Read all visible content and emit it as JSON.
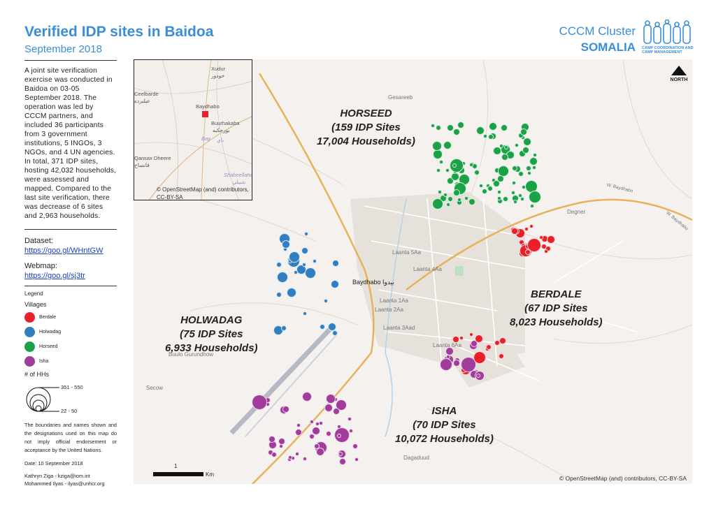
{
  "header": {
    "title": "Verified IDP sites in Baidoa",
    "subtitle": "September 2018",
    "org_line1": "CCCM Cluster",
    "org_line2": "SOMALIA",
    "org_logo_text": "CAMP COORDINATION AND CAMP MANAGEMENT"
  },
  "sidebar": {
    "intro": "A joint site verification exercise was conducted in Baidoa on 03-05 September 2018. The operation was led by CCCM partners, and included 36 participants from 3 government institutions, 5 INGOs, 3 NGOs, and 4 UN agencies. In total, 371 IDP sites, hosting 42,032 households, were assessed and mapped. Compared to the last site verification, there was decrease of 6 sites and 2,963 households.",
    "dataset_label": "Dataset:",
    "dataset_link": "https://goo.gl/WHntGW",
    "webmap_label": "Webmap:",
    "webmap_link": "https://goo.gl/sj3tr",
    "legend_title": "Legend",
    "villages_title": "Villages",
    "villages": [
      {
        "name": "Berdale",
        "color": "#e8202a"
      },
      {
        "name": "Holwadag",
        "color": "#2f7fc1"
      },
      {
        "name": "Horseed",
        "color": "#1ba146"
      },
      {
        "name": "Isha",
        "color": "#a23c9b"
      }
    ],
    "hh_title": "# of HHs",
    "hh_max": "351 - 550",
    "hh_min": "22 - 50",
    "disclaimer": "The boundaries and names shown and the designations used on this map do not imply official endorsement or acceptance by the United Nations.",
    "date": "Date: 10 September 2018",
    "contact1": "Kathryn Ziga - kziga@iom.int",
    "contact2": "Mohammed Ilyas - ilyas@unhcr.org"
  },
  "map": {
    "areas": [
      {
        "name": "HORSEED",
        "sites": "(159 IDP Sites",
        "households": "17,004 Households)"
      },
      {
        "name": "BERDALE",
        "sites": "(67 IDP Sites",
        "households": "8,023 Households)"
      },
      {
        "name": "HOLWADAG",
        "sites": "(75 IDP Sites",
        "households": "6,933 Households)"
      },
      {
        "name": "ISHA",
        "sites": "(70 IDP Sites",
        "households": "10,072 Households)"
      }
    ],
    "places": [
      "Gesareeb",
      "Laanta 5Aa",
      "Laanta 4Aa",
      "Baydhabo بيدوا",
      "Laanta 1Aa",
      "Laanta 2Aa",
      "Laanta 3Aad",
      "Laanta 6Aa",
      "Degner",
      "Buulo Gurundhow",
      "Secow",
      "Dagaduud",
      "W. Baydhabo",
      "W. Baydhabo"
    ],
    "north_label": "NORTH",
    "scale_zero": "0",
    "scale_one": "1",
    "scale_unit": "Km",
    "credit": "© OpenStreetMap (and) contributors, CC-BY-SA",
    "inset": {
      "places": [
        "Xudur",
        "حودور",
        "Ceelbarde",
        "عيلبرده",
        "Baydhabo",
        "Buurhakaba",
        "بورحكبه",
        "Bay",
        "باي",
        "Qansax Dheere",
        "قانساح",
        "Shabeellaha",
        "شبيلي"
      ],
      "credit_line1": "© OpenStreetMap (and) contributors, CC-BY-SA"
    }
  }
}
